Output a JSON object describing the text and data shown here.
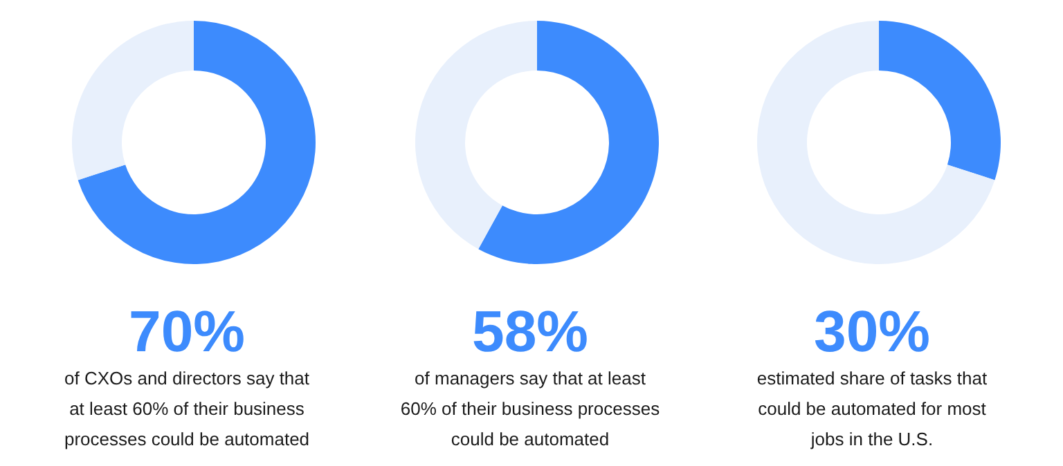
{
  "chart_data": [
    {
      "type": "donut",
      "categories": [
        null,
        null
      ],
      "values": [
        70,
        30
      ],
      "colors": [
        "#3d8bfd",
        "#e8f0fc"
      ],
      "title": "70%",
      "annotations": [
        "of CXOs and directors say that at least 60% of their business processes could be automated"
      ]
    },
    {
      "type": "donut",
      "categories": [
        null,
        null
      ],
      "values": [
        58,
        42
      ],
      "colors": [
        "#3d8bfd",
        "#e8f0fc"
      ],
      "title": "58%",
      "annotations": [
        "of managers say that at least 60% of their business processes could be automated"
      ]
    },
    {
      "type": "donut",
      "categories": [
        null,
        null
      ],
      "values": [
        30,
        70
      ],
      "colors": [
        "#3d8bfd",
        "#e8f0fc"
      ],
      "title": "30%",
      "annotations": [
        "estimated share of tasks that could be automated for most jobs in the U.S."
      ]
    }
  ]
}
